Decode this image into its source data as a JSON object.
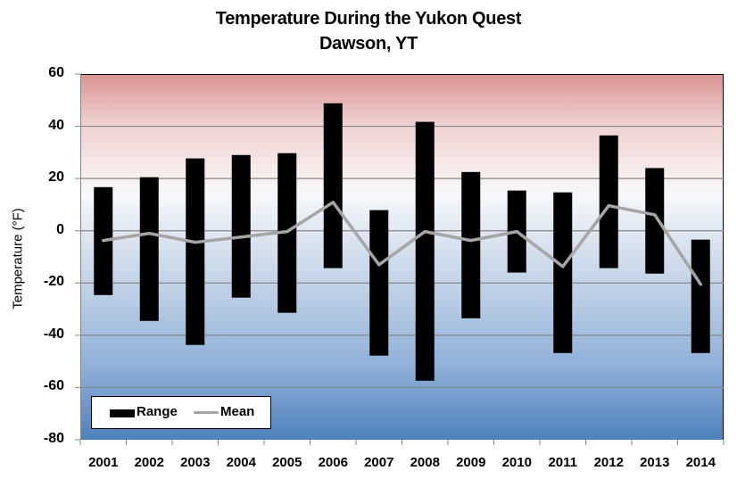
{
  "chart_data": {
    "type": "bar",
    "subtype": "floating range bars with mean line",
    "title": "Temperature During the Yukon Quest",
    "subtitle": "Dawson, YT",
    "xlabel": "",
    "ylabel": "Temperature (°F)",
    "ylim": [
      -80,
      60
    ],
    "yticks": [
      60,
      40,
      20,
      0,
      -20,
      -40,
      -60,
      -80
    ],
    "grid": true,
    "legend_position": "bottom-left inside plot",
    "categories": [
      "2001",
      "2002",
      "2003",
      "2004",
      "2005",
      "2006",
      "2007",
      "2008",
      "2009",
      "2010",
      "2011",
      "2012",
      "2013",
      "2014"
    ],
    "series": [
      {
        "name": "Range",
        "type": "floating-bar",
        "color": "#000000",
        "high": [
          16.7,
          20.5,
          27.7,
          29,
          29.7,
          48.8,
          7.9,
          41.7,
          22.5,
          15.4,
          14.7,
          36.5,
          24,
          -3.4
        ],
        "low": [
          -24.6,
          -34.5,
          -43.7,
          -25.6,
          -31.4,
          -14.3,
          -47.8,
          -57.4,
          -33.5,
          -16,
          -46.8,
          -14.3,
          -16.4,
          -46.8
        ]
      },
      {
        "name": "Mean",
        "type": "line",
        "color": "#a5a5a5",
        "values": [
          -3.7,
          -1.0,
          -4.4,
          -2.4,
          -0.3,
          10.9,
          -13.0,
          -0.3,
          -3.7,
          -0.3,
          -13.7,
          9.6,
          6.1,
          -20.5
        ]
      }
    ]
  },
  "title_line1": "Temperature During the Yukon Quest",
  "title_line2": "Dawson, YT",
  "y_axis_label": "Temperature (°F)",
  "y_ticks": [
    "60",
    "40",
    "20",
    "0",
    "-20",
    "-40",
    "-60",
    "-80"
  ],
  "x_ticks": [
    "2001",
    "2002",
    "2003",
    "2004",
    "2005",
    "2006",
    "2007",
    "2008",
    "2009",
    "2010",
    "2011",
    "2012",
    "2013",
    "2014"
  ],
  "legend": {
    "range_label": "Range",
    "mean_label": "Mean"
  },
  "colors": {
    "range": "#000000",
    "mean": "#a5a5a5",
    "warm": "#d99594",
    "cold": "#4f81bd",
    "grid": "#868686"
  }
}
